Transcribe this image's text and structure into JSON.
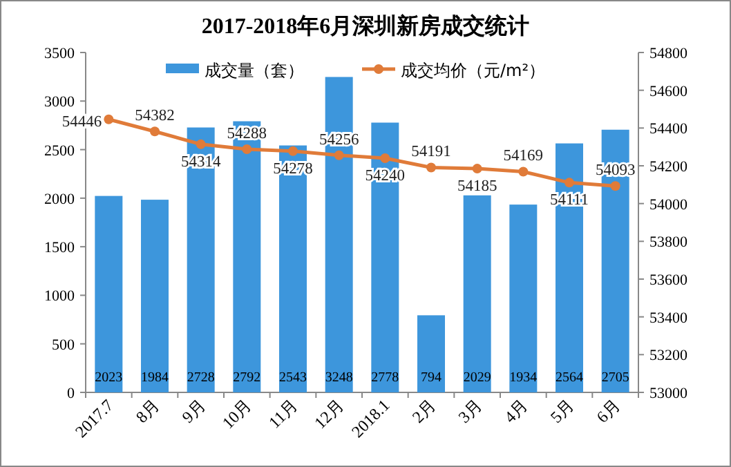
{
  "chart_data": {
    "type": "bar",
    "title": "2017-2018年6月深圳新房成交统计",
    "categories": [
      "2017.7",
      "8月",
      "9月",
      "10月",
      "11月",
      "12月",
      "2018.1",
      "2月",
      "3月",
      "4月",
      "5月",
      "6月"
    ],
    "series": [
      {
        "name": "成交量（套）",
        "color": "#3d96dc",
        "values": [
          2023,
          1984,
          2728,
          2792,
          2543,
          3248,
          2778,
          794,
          2029,
          1934,
          2564,
          2705
        ]
      },
      {
        "name": "成交均价（元/m²）",
        "type": "line",
        "axis": "y2",
        "color": "#e07b39",
        "marker": "circle",
        "values": [
          54446,
          54382,
          54314,
          54288,
          54278,
          54256,
          54240,
          54191,
          54185,
          54169,
          54111,
          54093
        ]
      }
    ],
    "ylim": [
      0,
      3500
    ],
    "yticks": [
      0,
      500,
      1000,
      1500,
      2000,
      2500,
      3000,
      3500
    ],
    "y2lim": [
      53000,
      54800
    ],
    "y2ticks": [
      53000,
      53200,
      53400,
      53600,
      53800,
      54000,
      54200,
      54400,
      54600,
      54800
    ],
    "data_labels": true,
    "legend": "top",
    "grid": false
  }
}
